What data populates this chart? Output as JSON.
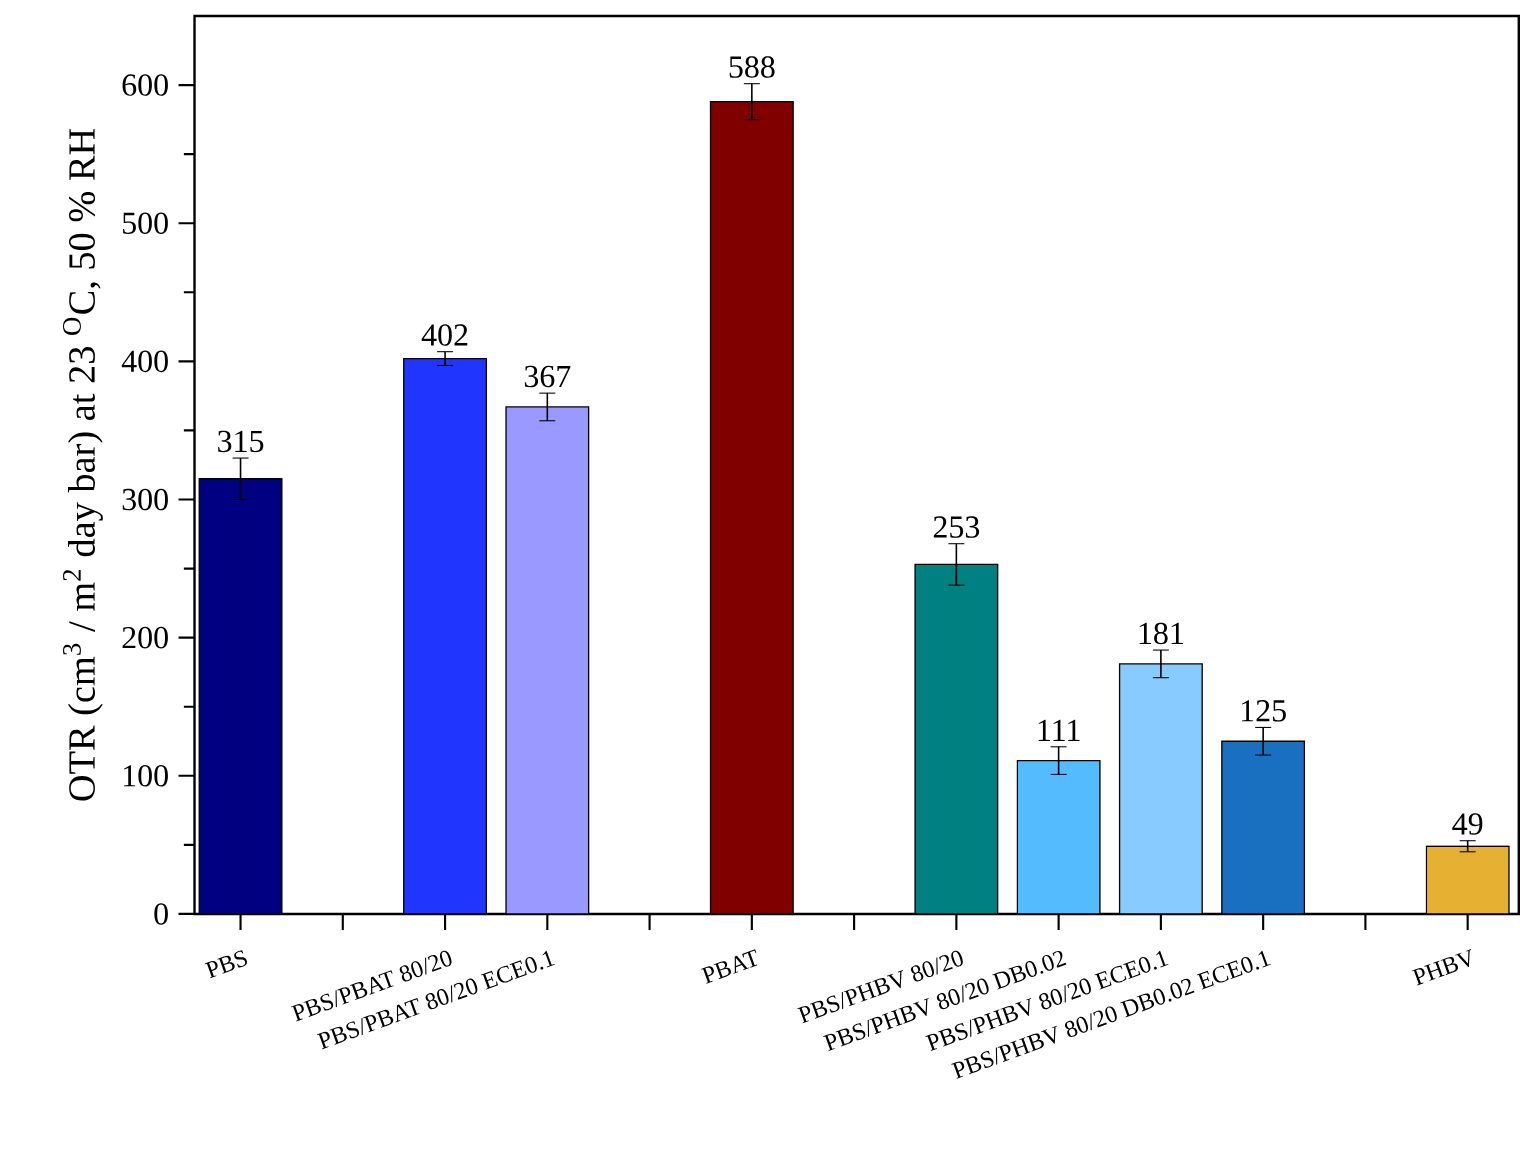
{
  "chart_data": {
    "type": "bar",
    "ylabel": "OTR (cm$^{3}$ / m$^{2}$ day bar) at 23 $^{O}$C, 50 % RH",
    "categories": [
      "PBS",
      null,
      "PBS/PBAT 80/20",
      "PBS/PBAT 80/20 ECE0.1",
      null,
      "PBAT",
      null,
      "PBS/PHBV 80/20",
      "PBS/PHBV 80/20 DB0.02",
      "PBS/PHBV 80/20 ECE0.1",
      "PBS/PHBV 80/20 DB0.02 ECE0.1",
      null,
      "PHBV"
    ],
    "values": [
      315,
      null,
      402,
      367,
      null,
      588,
      null,
      253,
      111,
      181,
      125,
      null,
      49
    ],
    "errors": [
      15,
      null,
      5,
      10,
      null,
      13,
      null,
      15,
      10,
      10,
      10,
      null,
      4
    ],
    "colors": [
      "#000080",
      null,
      "#2036ff",
      "#9999ff",
      null,
      "#800000",
      null,
      "#008080",
      "#55bbff",
      "#88ccff",
      "#1a70c0",
      null,
      "#e6b033"
    ],
    "ylim": [
      0,
      650
    ],
    "yticks": [
      0,
      100,
      200,
      300,
      400,
      500,
      600
    ],
    "data_labels": true
  }
}
